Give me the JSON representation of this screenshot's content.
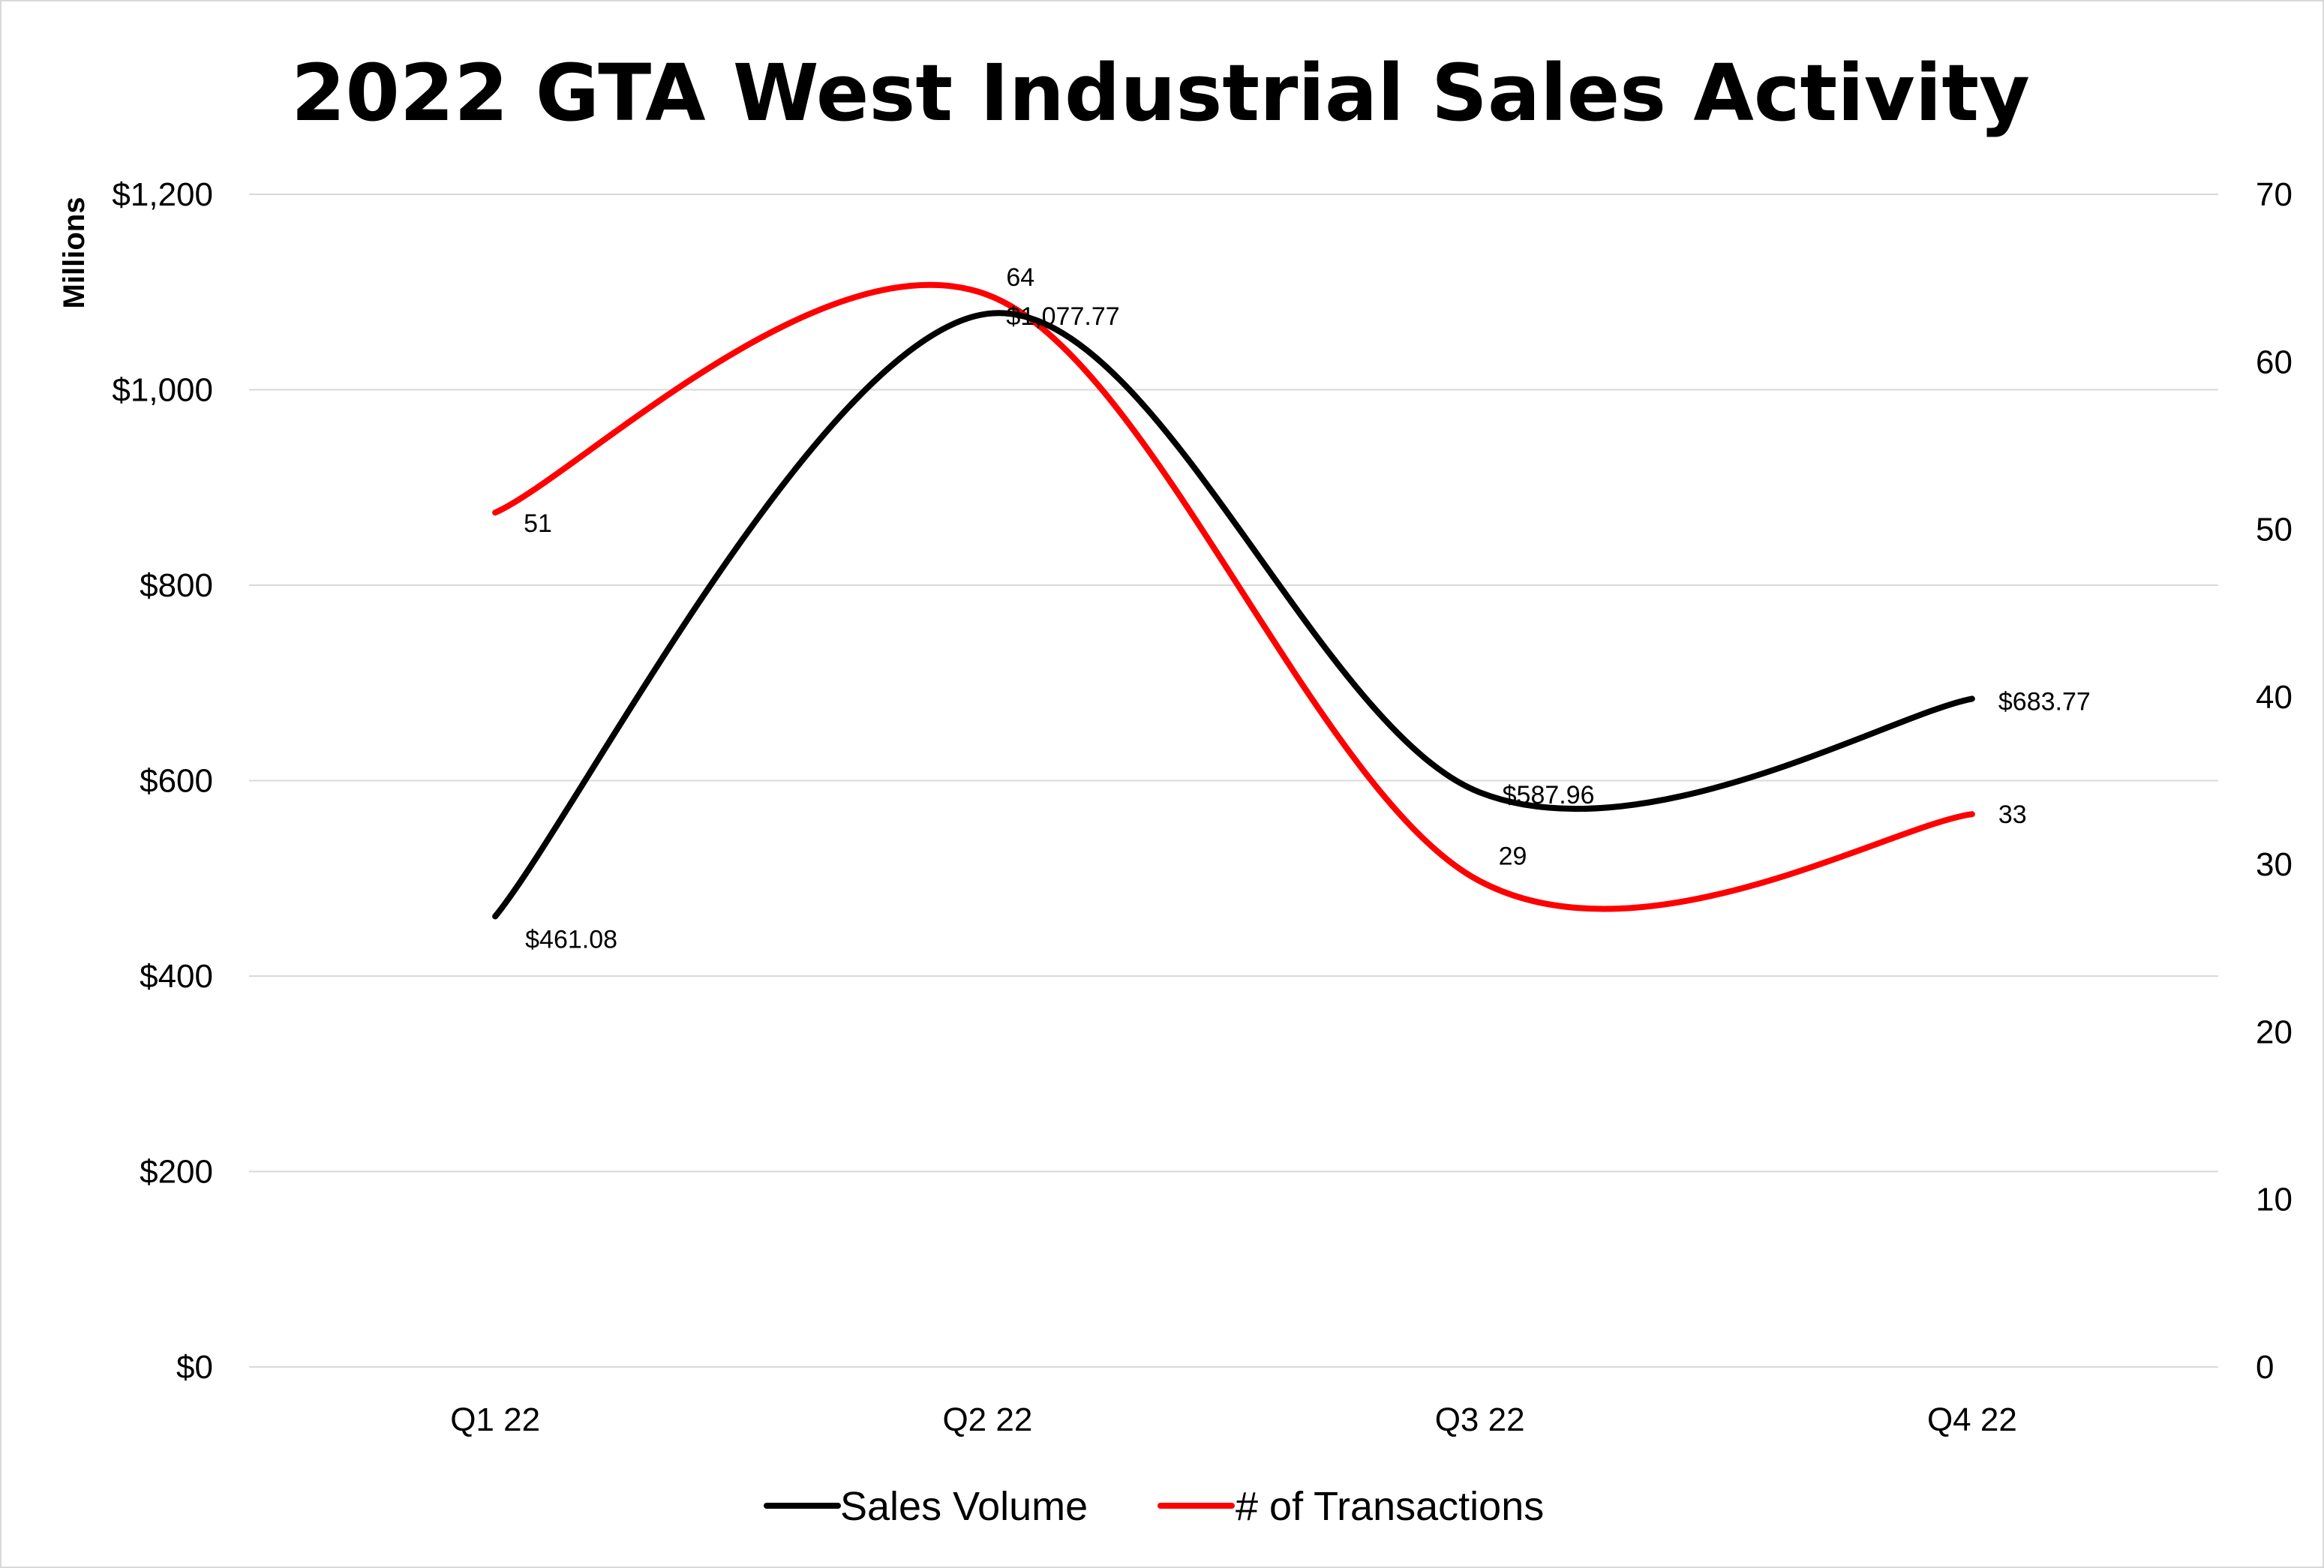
{
  "chart_data": {
    "type": "line",
    "title": "2022 GTA West Industrial Sales Activity",
    "categories": [
      "Q1 22",
      "Q2 22",
      "Q3 22",
      "Q4 22"
    ],
    "series": [
      {
        "name": "Sales Volume",
        "axis": "left",
        "color": "#000000",
        "values": [
          461.08,
          1077.77,
          587.96,
          683.77
        ],
        "labels": [
          "$461.08",
          "$1,077.77",
          "$587.96",
          "$683.77"
        ]
      },
      {
        "name": "# of Transactions",
        "axis": "right",
        "color": "#ff0000",
        "values": [
          51,
          64,
          29,
          33
        ],
        "labels": [
          "51",
          "64",
          "29",
          "33"
        ]
      }
    ],
    "ylabel": "Millions",
    "ylim": [
      0,
      1200
    ],
    "yticks": [
      0,
      200,
      400,
      600,
      800,
      1000,
      1200
    ],
    "ytick_labels": [
      "$0",
      "$200",
      "$400",
      "$600",
      "$800",
      "$1,000",
      "$1,200"
    ],
    "y2lim": [
      0,
      70
    ],
    "y2ticks": [
      0,
      10,
      20,
      30,
      40,
      50,
      60,
      70
    ],
    "y2tick_labels": [
      "0",
      "10",
      "20",
      "30",
      "40",
      "50",
      "60",
      "70"
    ],
    "grid": true,
    "smooth": true,
    "legend": "bottom"
  }
}
